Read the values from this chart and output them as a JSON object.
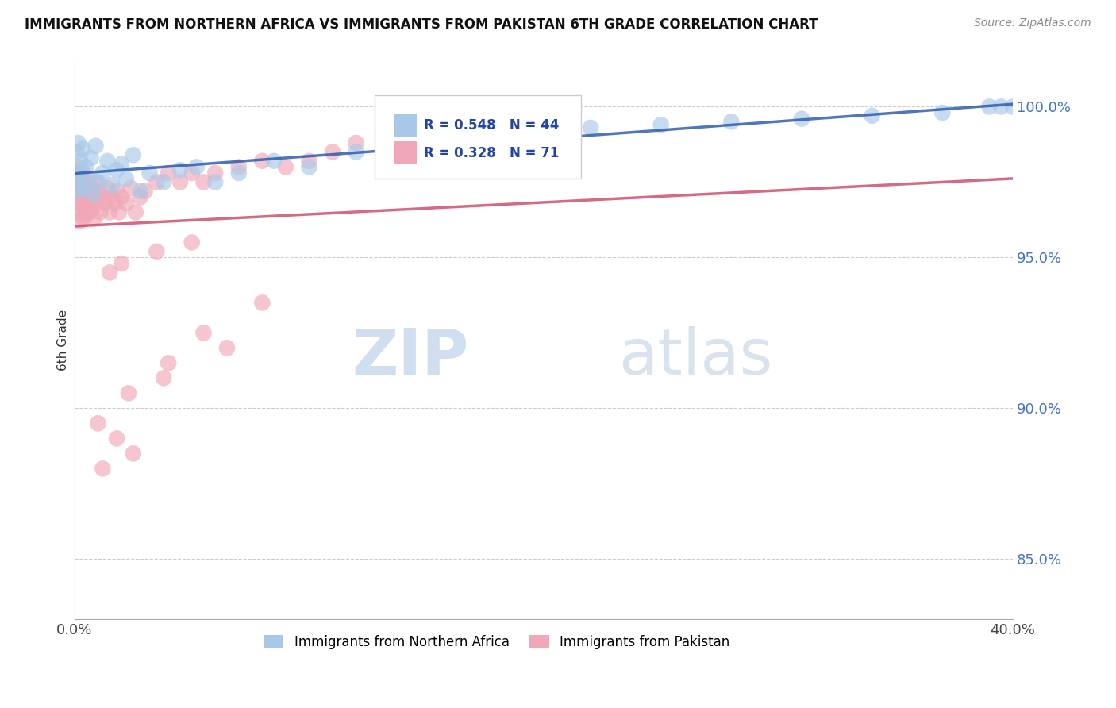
{
  "title": "IMMIGRANTS FROM NORTHERN AFRICA VS IMMIGRANTS FROM PAKISTAN 6TH GRADE CORRELATION CHART",
  "source": "Source: ZipAtlas.com",
  "ylabel": "6th Grade",
  "r_blue": 0.548,
  "n_blue": 44,
  "r_pink": 0.328,
  "n_pink": 71,
  "blue_color": "#a8c8e8",
  "pink_color": "#f0a8b8",
  "blue_line_color": "#2255aa",
  "pink_line_color": "#cc4466",
  "legend1_label": "Immigrants from Northern Africa",
  "legend2_label": "Immigrants from Pakistan",
  "xlim": [
    0,
    40
  ],
  "ylim": [
    83,
    101.5
  ],
  "ytick_vals": [
    85.0,
    90.0,
    95.0,
    100.0
  ],
  "watermark_text": "ZIPatlas",
  "blue_scatter_x": [
    0.05,
    0.08,
    0.1,
    0.15,
    0.2,
    0.25,
    0.3,
    0.35,
    0.4,
    0.5,
    0.6,
    0.7,
    0.8,
    0.9,
    1.0,
    1.2,
    1.4,
    1.6,
    1.8,
    2.0,
    2.2,
    2.5,
    2.8,
    3.2,
    3.8,
    4.5,
    5.2,
    6.0,
    7.0,
    8.5,
    10.0,
    12.0,
    14.0,
    16.5,
    19.0,
    22.0,
    25.0,
    28.0,
    31.0,
    34.0,
    37.0,
    39.0,
    39.5,
    40.0
  ],
  "blue_scatter_y": [
    97.8,
    98.5,
    97.2,
    98.8,
    97.5,
    98.2,
    97.9,
    98.6,
    97.3,
    98.0,
    97.6,
    98.3,
    97.1,
    98.7,
    97.5,
    97.8,
    98.2,
    97.4,
    97.9,
    98.1,
    97.6,
    98.4,
    97.2,
    97.8,
    97.5,
    97.9,
    98.0,
    97.5,
    97.8,
    98.2,
    98.0,
    98.5,
    98.8,
    99.0,
    99.2,
    99.3,
    99.4,
    99.5,
    99.6,
    99.7,
    99.8,
    100.0,
    100.0,
    100.0
  ],
  "pink_scatter_x": [
    0.02,
    0.05,
    0.08,
    0.1,
    0.12,
    0.15,
    0.18,
    0.2,
    0.22,
    0.25,
    0.28,
    0.3,
    0.32,
    0.35,
    0.38,
    0.4,
    0.42,
    0.45,
    0.48,
    0.5,
    0.55,
    0.6,
    0.65,
    0.7,
    0.75,
    0.8,
    0.85,
    0.9,
    0.95,
    1.0,
    1.1,
    1.2,
    1.3,
    1.4,
    1.5,
    1.6,
    1.7,
    1.8,
    1.9,
    2.0,
    2.2,
    2.4,
    2.6,
    2.8,
    3.0,
    3.5,
    4.0,
    4.5,
    5.0,
    5.5,
    6.0,
    7.0,
    8.0,
    9.0,
    10.0,
    11.0,
    12.0,
    1.5,
    2.0,
    3.5,
    5.0,
    1.0,
    2.5,
    4.0,
    6.5,
    8.0,
    1.2,
    1.8,
    2.3,
    3.8,
    5.5
  ],
  "pink_scatter_y": [
    97.5,
    97.8,
    96.5,
    97.2,
    98.0,
    96.8,
    97.4,
    97.0,
    96.2,
    97.6,
    96.9,
    97.3,
    96.5,
    97.8,
    96.3,
    97.0,
    96.7,
    97.2,
    96.4,
    97.5,
    96.8,
    97.1,
    96.5,
    97.3,
    96.6,
    97.0,
    96.3,
    97.5,
    96.8,
    97.2,
    96.5,
    97.0,
    96.8,
    97.3,
    96.5,
    97.0,
    96.8,
    97.2,
    96.5,
    97.0,
    96.8,
    97.3,
    96.5,
    97.0,
    97.2,
    97.5,
    97.8,
    97.5,
    97.8,
    97.5,
    97.8,
    98.0,
    98.2,
    98.0,
    98.2,
    98.5,
    98.8,
    94.5,
    94.8,
    95.2,
    95.5,
    89.5,
    88.5,
    91.5,
    92.0,
    93.5,
    88.0,
    89.0,
    90.5,
    91.0,
    92.5
  ]
}
